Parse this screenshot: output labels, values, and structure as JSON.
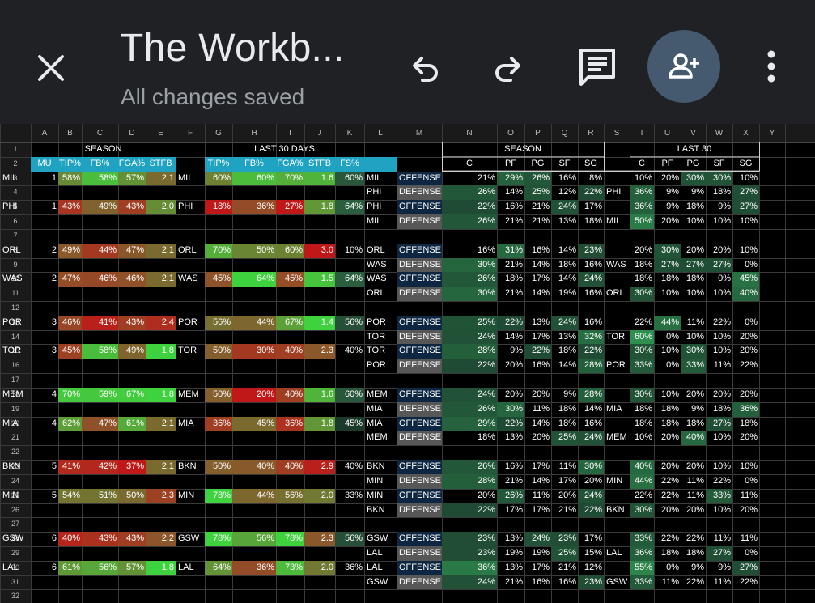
{
  "toolbar": {
    "doc_title": "The Workb...",
    "save_status": "All changes saved",
    "icons": {
      "close": "close-icon",
      "undo": "undo-icon",
      "redo": "redo-icon",
      "comments": "comment-icon",
      "share": "add-person-icon",
      "more": "more-vert-icon"
    }
  },
  "colors": {
    "toolbar_bg": "#202124",
    "share_bg": "#455a6e",
    "header_cyan": "#20a3c2",
    "offense_bg": "#0d2642",
    "defense_bg": "#575757"
  },
  "sheet": {
    "column_letters": [
      "A",
      "B",
      "C",
      "D",
      "E",
      "F",
      "G",
      "H",
      "I",
      "J",
      "K",
      "L",
      "M",
      "N",
      "O",
      "P",
      "Q",
      "R",
      "S",
      "T",
      "U",
      "V",
      "W",
      "X",
      "Y"
    ],
    "row_numbers": [
      "1",
      "2",
      "3",
      "4",
      "5",
      "6",
      "7",
      "8",
      "9",
      "10",
      "11",
      "12",
      "13",
      "14",
      "15",
      "16",
      "17",
      "18",
      "19",
      "20",
      "21",
      "22",
      "23",
      "24",
      "25",
      "26",
      "27",
      "28",
      "29",
      "30",
      "31",
      "32"
    ],
    "section_headers": {
      "season": "SEASON",
      "last30days": "LAST 30 DAYS",
      "season2": "SEASON",
      "last30": "LAST 30"
    },
    "left_headers": [
      "MU",
      "TIP%",
      "FB%",
      "FGA%",
      "STFB"
    ],
    "mid_headers": [
      "TIP%",
      "FB%",
      "FGA%",
      "STFB",
      "FS%"
    ],
    "pos_headers": [
      "C",
      "PF",
      "PG",
      "SF",
      "SG"
    ],
    "pos_headers2": [
      "C",
      "PF",
      "PG",
      "SF",
      "SG"
    ],
    "matchups": [
      {
        "row": 3,
        "team": "MIL",
        "mu": "1",
        "tip": "58%",
        "fb": "58%",
        "fga": "57%",
        "stfb": "2.1",
        "team2": "MIL",
        "tip2": "60%",
        "fb2": "60%",
        "fga2": "70%",
        "stfb2": "1.6",
        "fs": "60%"
      },
      {
        "row": 5,
        "team": "PHI",
        "mu": "1",
        "tip": "43%",
        "fb": "49%",
        "fga": "43%",
        "stfb": "2.0",
        "team2": "PHI",
        "tip2": "18%",
        "fb2": "36%",
        "fga2": "27%",
        "stfb2": "1.8",
        "fs": "64%"
      },
      {
        "row": 8,
        "team": "ORL",
        "mu": "2",
        "tip": "49%",
        "fb": "44%",
        "fga": "47%",
        "stfb": "2.1",
        "team2": "ORL",
        "tip2": "70%",
        "fb2": "50%",
        "fga2": "60%",
        "stfb2": "3.0",
        "fs": "10%"
      },
      {
        "row": 10,
        "team": "WAS",
        "mu": "2",
        "tip": "47%",
        "fb": "46%",
        "fga": "46%",
        "stfb": "2.1",
        "team2": "WAS",
        "tip2": "45%",
        "fb2": "64%",
        "fga2": "45%",
        "stfb2": "1.5",
        "fs": "64%"
      },
      {
        "row": 13,
        "team": "POR",
        "mu": "3",
        "tip": "46%",
        "fb": "41%",
        "fga": "43%",
        "stfb": "2.4",
        "team2": "POR",
        "tip2": "56%",
        "fb2": "44%",
        "fga2": "67%",
        "stfb2": "1.4",
        "fs": "56%"
      },
      {
        "row": 15,
        "team": "TOR",
        "mu": "3",
        "tip": "45%",
        "fb": "58%",
        "fga": "49%",
        "stfb": "1.8",
        "team2": "TOR",
        "tip2": "50%",
        "fb2": "30%",
        "fga2": "40%",
        "stfb2": "2.3",
        "fs": "40%"
      },
      {
        "row": 18,
        "team": "MEM",
        "mu": "4",
        "tip": "70%",
        "fb": "59%",
        "fga": "67%",
        "stfb": "1.8",
        "team2": "MEM",
        "tip2": "50%",
        "fb2": "20%",
        "fga2": "40%",
        "stfb2": "1.6",
        "fs": "60%"
      },
      {
        "row": 20,
        "team": "MIA",
        "mu": "4",
        "tip": "62%",
        "fb": "47%",
        "fga": "61%",
        "stfb": "2.1",
        "team2": "MIA",
        "tip2": "36%",
        "fb2": "45%",
        "fga2": "36%",
        "stfb2": "1.8",
        "fs": "45%"
      },
      {
        "row": 23,
        "team": "BKN",
        "mu": "5",
        "tip": "41%",
        "fb": "42%",
        "fga": "37%",
        "stfb": "2.1",
        "team2": "BKN",
        "tip2": "50%",
        "fb2": "40%",
        "fga2": "40%",
        "stfb2": "2.9",
        "fs": "40%"
      },
      {
        "row": 25,
        "team": "MIN",
        "mu": "5",
        "tip": "54%",
        "fb": "51%",
        "fga": "50%",
        "stfb": "2.3",
        "team2": "MIN",
        "tip2": "78%",
        "fb2": "44%",
        "fga2": "56%",
        "stfb2": "2.0",
        "fs": "33%"
      },
      {
        "row": 28,
        "team": "GSW",
        "mu": "6",
        "tip": "40%",
        "fb": "43%",
        "fga": "43%",
        "stfb": "2.2",
        "team2": "GSW",
        "tip2": "78%",
        "fb2": "56%",
        "fga2": "78%",
        "stfb2": "2.3",
        "fs": "56%"
      },
      {
        "row": 30,
        "team": "LAL",
        "mu": "6",
        "tip": "61%",
        "fb": "56%",
        "fga": "57%",
        "stfb": "1.8",
        "team2": "LAL",
        "tip2": "64%",
        "fb2": "36%",
        "fga2": "73%",
        "stfb2": "2.0",
        "fs": "36%"
      }
    ],
    "positions": [
      {
        "row": 3,
        "team": "MIL",
        "type": "OFFENSE",
        "season": [
          "21%",
          "29%",
          "26%",
          "16%",
          "8%"
        ],
        "t": "",
        "last30": [
          "10%",
          "20%",
          "30%",
          "30%",
          "10%"
        ]
      },
      {
        "row": 4,
        "team": "PHI",
        "type": "DEFENSE",
        "season": [
          "26%",
          "14%",
          "25%",
          "12%",
          "22%"
        ],
        "t": "PHI",
        "last30": [
          "36%",
          "9%",
          "9%",
          "18%",
          "27%"
        ]
      },
      {
        "row": 5,
        "team": "PHI",
        "type": "OFFENSE",
        "season": [
          "22%",
          "16%",
          "21%",
          "24%",
          "17%"
        ],
        "t": "",
        "last30": [
          "36%",
          "9%",
          "18%",
          "9%",
          "27%"
        ]
      },
      {
        "row": 6,
        "team": "MIL",
        "type": "DEFENSE",
        "season": [
          "26%",
          "21%",
          "21%",
          "13%",
          "18%"
        ],
        "t": "MIL",
        "last30": [
          "50%",
          "20%",
          "10%",
          "10%",
          "10%"
        ]
      },
      {
        "row": 8,
        "team": "ORL",
        "type": "OFFENSE",
        "season": [
          "16%",
          "31%",
          "16%",
          "14%",
          "23%"
        ],
        "t": "",
        "last30": [
          "20%",
          "30%",
          "20%",
          "20%",
          "10%"
        ]
      },
      {
        "row": 9,
        "team": "WAS",
        "type": "DEFENSE",
        "season": [
          "30%",
          "21%",
          "14%",
          "18%",
          "16%"
        ],
        "t": "WAS",
        "last30": [
          "18%",
          "27%",
          "27%",
          "27%",
          "0%"
        ]
      },
      {
        "row": 10,
        "team": "WAS",
        "type": "OFFENSE",
        "season": [
          "26%",
          "18%",
          "17%",
          "14%",
          "24%"
        ],
        "t": "",
        "last30": [
          "18%",
          "18%",
          "18%",
          "0%",
          "45%"
        ]
      },
      {
        "row": 11,
        "team": "ORL",
        "type": "DEFENSE",
        "season": [
          "30%",
          "21%",
          "14%",
          "19%",
          "16%"
        ],
        "t": "ORL",
        "last30": [
          "30%",
          "10%",
          "10%",
          "10%",
          "40%"
        ]
      },
      {
        "row": 13,
        "team": "POR",
        "type": "OFFENSE",
        "season": [
          "25%",
          "22%",
          "13%",
          "24%",
          "16%"
        ],
        "t": "",
        "last30": [
          "22%",
          "44%",
          "11%",
          "22%",
          "0%"
        ]
      },
      {
        "row": 14,
        "team": "TOR",
        "type": "DEFENSE",
        "season": [
          "24%",
          "14%",
          "17%",
          "13%",
          "32%"
        ],
        "t": "TOR",
        "last30": [
          "60%",
          "0%",
          "10%",
          "10%",
          "20%"
        ]
      },
      {
        "row": 15,
        "team": "TOR",
        "type": "OFFENSE",
        "season": [
          "28%",
          "9%",
          "22%",
          "18%",
          "22%"
        ],
        "t": "",
        "last30": [
          "30%",
          "10%",
          "30%",
          "10%",
          "20%"
        ]
      },
      {
        "row": 16,
        "team": "POR",
        "type": "DEFENSE",
        "season": [
          "22%",
          "20%",
          "16%",
          "14%",
          "28%"
        ],
        "t": "POR",
        "last30": [
          "33%",
          "0%",
          "33%",
          "11%",
          "22%"
        ]
      },
      {
        "row": 18,
        "team": "MEM",
        "type": "OFFENSE",
        "season": [
          "24%",
          "20%",
          "20%",
          "9%",
          "28%"
        ],
        "t": "",
        "last30": [
          "30%",
          "10%",
          "20%",
          "20%",
          "20%"
        ]
      },
      {
        "row": 19,
        "team": "MIA",
        "type": "DEFENSE",
        "season": [
          "26%",
          "30%",
          "11%",
          "18%",
          "14%"
        ],
        "t": "MIA",
        "last30": [
          "18%",
          "18%",
          "9%",
          "18%",
          "36%"
        ]
      },
      {
        "row": 20,
        "team": "MIA",
        "type": "OFFENSE",
        "season": [
          "29%",
          "22%",
          "14%",
          "18%",
          "16%"
        ],
        "t": "",
        "last30": [
          "18%",
          "18%",
          "18%",
          "27%",
          "18%"
        ]
      },
      {
        "row": 21,
        "team": "MEM",
        "type": "DEFENSE",
        "season": [
          "18%",
          "13%",
          "20%",
          "25%",
          "24%"
        ],
        "t": "MEM",
        "last30": [
          "10%",
          "20%",
          "40%",
          "10%",
          "20%"
        ]
      },
      {
        "row": 23,
        "team": "BKN",
        "type": "OFFENSE",
        "season": [
          "26%",
          "16%",
          "17%",
          "11%",
          "30%"
        ],
        "t": "",
        "last30": [
          "40%",
          "20%",
          "20%",
          "10%",
          "10%"
        ]
      },
      {
        "row": 24,
        "team": "MIN",
        "type": "DEFENSE",
        "season": [
          "28%",
          "21%",
          "14%",
          "17%",
          "20%"
        ],
        "t": "MIN",
        "last30": [
          "44%",
          "22%",
          "11%",
          "22%",
          "0%"
        ]
      },
      {
        "row": 25,
        "team": "MIN",
        "type": "OFFENSE",
        "season": [
          "20%",
          "26%",
          "11%",
          "20%",
          "24%"
        ],
        "t": "",
        "last30": [
          "22%",
          "22%",
          "11%",
          "33%",
          "11%"
        ]
      },
      {
        "row": 26,
        "team": "BKN",
        "type": "DEFENSE",
        "season": [
          "22%",
          "17%",
          "17%",
          "21%",
          "22%"
        ],
        "t": "BKN",
        "last30": [
          "30%",
          "20%",
          "20%",
          "10%",
          "20%"
        ]
      },
      {
        "row": 28,
        "team": "GSW",
        "type": "OFFENSE",
        "season": [
          "23%",
          "13%",
          "24%",
          "23%",
          "17%"
        ],
        "t": "",
        "last30": [
          "33%",
          "22%",
          "22%",
          "11%",
          "11%"
        ]
      },
      {
        "row": 29,
        "team": "LAL",
        "type": "DEFENSE",
        "season": [
          "23%",
          "19%",
          "19%",
          "25%",
          "15%"
        ],
        "t": "LAL",
        "last30": [
          "36%",
          "18%",
          "18%",
          "27%",
          "0%"
        ]
      },
      {
        "row": 30,
        "team": "LAL",
        "type": "OFFENSE",
        "season": [
          "36%",
          "13%",
          "17%",
          "21%",
          "12%"
        ],
        "t": "",
        "last30": [
          "55%",
          "0%",
          "9%",
          "9%",
          "27%"
        ]
      },
      {
        "row": 31,
        "team": "GSW",
        "type": "DEFENSE",
        "season": [
          "24%",
          "21%",
          "16%",
          "16%",
          "23%"
        ],
        "t": "GSW",
        "last30": [
          "33%",
          "11%",
          "22%",
          "11%",
          "22%"
        ]
      }
    ]
  }
}
